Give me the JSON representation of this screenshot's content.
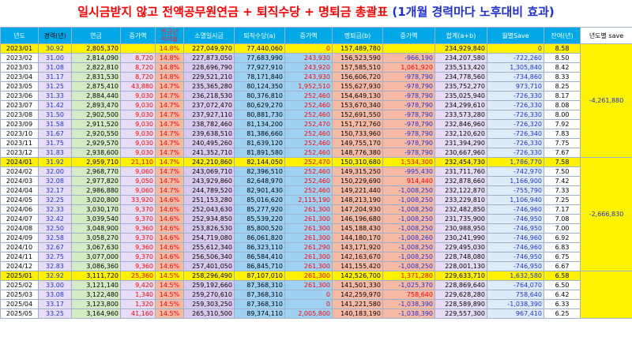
{
  "title": {
    "main": "일시금받지 않고 전액공무원연금 + 퇴직수당 + 명퇴금 총괄표",
    "sub": "(1개월 경력마다 노후대비 효과)"
  },
  "headers": [
    "년도",
    "경력(년)",
    "연금",
    "증가액",
    "연금년\n이자율",
    "소멸일시금",
    "퇴직수당(a)",
    "증가액",
    "명퇴금(b)",
    "증가액",
    "합계(a+b)",
    "월별Save",
    "잔여(년)",
    "년도별 save"
  ],
  "rows": [
    {
      "d": "2023/01",
      "e": "30.92",
      "p": "2,805,370",
      "pi": "",
      "rate": "14.8%",
      "lump": "227,049,970",
      "ret": "77,440,060",
      "ri": "0",
      "hon": "157,489,780",
      "hi": "",
      "sum": "234,929,840",
      "save": "0",
      "rem": "8.58",
      "hl": true
    },
    {
      "d": "2023/02",
      "e": "31.00",
      "p": "2,814,090",
      "pi": "8,720",
      "rate": "14.8%",
      "lump": "227,873,050",
      "ret": "77,683,990",
      "ri": "243,930",
      "hon": "156,523,590",
      "hi": "-966,190",
      "sum": "234,207,580",
      "save": "-722,260",
      "rem": "8.50"
    },
    {
      "d": "2023/03",
      "e": "31.08",
      "p": "2,822,810",
      "pi": "8,720",
      "rate": "14.8%",
      "lump": "228,696,790",
      "ret": "77,927,910",
      "ri": "243,920",
      "hon": "157,585,510",
      "hi": "1,061,920",
      "sum": "235,513,420",
      "save": "1,305,840",
      "rem": "8.42"
    },
    {
      "d": "2023/04",
      "e": "31.17",
      "p": "2,831,530",
      "pi": "8,720",
      "rate": "14.8%",
      "lump": "229,521,210",
      "ret": "78,171,840",
      "ri": "243,930",
      "hon": "156,606,720",
      "hi": "-978,790",
      "sum": "234,778,560",
      "save": "-734,860",
      "rem": "8.33"
    },
    {
      "d": "2023/05",
      "e": "31.25",
      "p": "2,875,410",
      "pi": "43,880",
      "rate": "14.7%",
      "lump": "235,365,280",
      "ret": "80,124,350",
      "ri": "1,952,510",
      "hon": "155,627,930",
      "hi": "-978,790",
      "sum": "235,752,270",
      "save": "973,710",
      "rem": "8.25"
    },
    {
      "d": "2023/06",
      "e": "31.33",
      "p": "2,884,440",
      "pi": "9,030",
      "rate": "14.7%",
      "lump": "236,218,530",
      "ret": "80,376,810",
      "ri": "252,460",
      "hon": "154,649,130",
      "hi": "-978,790",
      "sum": "235,025,940",
      "save": "-726,330",
      "rem": "8.17"
    },
    {
      "d": "2023/07",
      "e": "31.42",
      "p": "2,893,470",
      "pi": "9,030",
      "rate": "14.7%",
      "lump": "237,072,470",
      "ret": "80,629,270",
      "ri": "252,460",
      "hon": "153,670,340",
      "hi": "-978,790",
      "sum": "234,299,610",
      "save": "-726,330",
      "rem": "8.08"
    },
    {
      "d": "2023/08",
      "e": "31.50",
      "p": "2,902,500",
      "pi": "9,030",
      "rate": "14.7%",
      "lump": "237,927,110",
      "ret": "80,881,730",
      "ri": "252,460",
      "hon": "152,691,550",
      "hi": "-978,790",
      "sum": "233,573,280",
      "save": "-726,330",
      "rem": "8.00"
    },
    {
      "d": "2023/09",
      "e": "31.58",
      "p": "2,911,520",
      "pi": "9,030",
      "rate": "14.7%",
      "lump": "238,782,460",
      "ret": "81,134,200",
      "ri": "252,470",
      "hon": "151,712,760",
      "hi": "-978,790",
      "sum": "232,846,960",
      "save": "-726,320",
      "rem": "7.92"
    },
    {
      "d": "2023/10",
      "e": "31.67",
      "p": "2,920,550",
      "pi": "9,030",
      "rate": "14.7%",
      "lump": "239,638,510",
      "ret": "81,386,660",
      "ri": "252,460",
      "hon": "150,733,960",
      "hi": "-978,790",
      "sum": "232,120,620",
      "save": "-726,340",
      "rem": "7.83"
    },
    {
      "d": "2023/11",
      "e": "31.75",
      "p": "2,929,570",
      "pi": "9,030",
      "rate": "14.7%",
      "lump": "240,495,260",
      "ret": "81,639,120",
      "ri": "252,460",
      "hon": "149,755,170",
      "hi": "-978,790",
      "sum": "231,394,290",
      "save": "-726,330",
      "rem": "7.75"
    },
    {
      "d": "2023/12",
      "e": "31.83",
      "p": "2,938,600",
      "pi": "9,030",
      "rate": "14.7%",
      "lump": "241,352,710",
      "ret": "81,891,580",
      "ri": "252,460",
      "hon": "148,776,380",
      "hi": "-978,790",
      "sum": "230,667,960",
      "save": "-726,330",
      "rem": "7.67"
    },
    {
      "d": "2024/01",
      "e": "31.92",
      "p": "2,959,710",
      "pi": "21,110",
      "rate": "14.7%",
      "lump": "242,210,860",
      "ret": "82,144,050",
      "ri": "252,470",
      "hon": "150,310,680",
      "hi": "1,534,300",
      "sum": "232,454,730",
      "save": "1,786,770",
      "rem": "7.58",
      "hl": true
    },
    {
      "d": "2024/02",
      "e": "32.00",
      "p": "2,968,770",
      "pi": "9,060",
      "rate": "14.7%",
      "lump": "243,069,710",
      "ret": "82,396,510",
      "ri": "252,460",
      "hon": "149,315,250",
      "hi": "-995,430",
      "sum": "231,711,760",
      "save": "-742,970",
      "rem": "7.50"
    },
    {
      "d": "2024/03",
      "e": "32.08",
      "p": "2,977,820",
      "pi": "9,050",
      "rate": "14.7%",
      "lump": "243,929,860",
      "ret": "82,648,970",
      "ri": "252,460",
      "hon": "150,229,690",
      "hi": "914,440",
      "sum": "232,878,660",
      "save": "1,166,900",
      "rem": "7.42"
    },
    {
      "d": "2024/04",
      "e": "32.17",
      "p": "2,986,880",
      "pi": "9,060",
      "rate": "14.7%",
      "lump": "244,789,520",
      "ret": "82,901,430",
      "ri": "252,460",
      "hon": "149,221,440",
      "hi": "-1,008,250",
      "sum": "232,122,870",
      "save": "-755,790",
      "rem": "7.33"
    },
    {
      "d": "2024/05",
      "e": "32.25",
      "p": "3,020,800",
      "pi": "33,920",
      "rate": "14.6%",
      "lump": "251,153,280",
      "ret": "85,016,620",
      "ri": "2,115,190",
      "hon": "148,213,190",
      "hi": "-1,008,250",
      "sum": "233,229,810",
      "save": "1,106,940",
      "rem": "7.25"
    },
    {
      "d": "2024/06",
      "e": "32.33",
      "p": "3,030,170",
      "pi": "9,370",
      "rate": "14.6%",
      "lump": "252,043,630",
      "ret": "85,277,920",
      "ri": "261,300",
      "hon": "147,204,930",
      "hi": "-1,008,250",
      "sum": "232,482,850",
      "save": "-746,960",
      "rem": "7.17"
    },
    {
      "d": "2024/07",
      "e": "32.42",
      "p": "3,039,540",
      "pi": "9,370",
      "rate": "14.6%",
      "lump": "252,934,850",
      "ret": "85,539,220",
      "ri": "261,300",
      "hon": "146,196,680",
      "hi": "-1,008,250",
      "sum": "231,735,900",
      "save": "-746,950",
      "rem": "7.08"
    },
    {
      "d": "2024/08",
      "e": "32.50",
      "p": "3,048,900",
      "pi": "9,360",
      "rate": "14.6%",
      "lump": "253,826,530",
      "ret": "85,800,520",
      "ri": "261,300",
      "hon": "145,188,430",
      "hi": "-1,008,250",
      "sum": "230,988,950",
      "save": "-746,950",
      "rem": "7.00"
    },
    {
      "d": "2024/09",
      "e": "32.58",
      "p": "3,058,270",
      "pi": "9,370",
      "rate": "14.6%",
      "lump": "254,719,080",
      "ret": "86,061,820",
      "ri": "261,300",
      "hon": "144,180,170",
      "hi": "-1,008,260",
      "sum": "230,241,990",
      "save": "-746,960",
      "rem": "6.92"
    },
    {
      "d": "2024/10",
      "e": "32.67",
      "p": "3,067,630",
      "pi": "9,360",
      "rate": "14.6%",
      "lump": "255,612,340",
      "ret": "86,323,110",
      "ri": "261,290",
      "hon": "143,171,920",
      "hi": "-1,008,250",
      "sum": "229,495,030",
      "save": "-746,960",
      "rem": "6.83"
    },
    {
      "d": "2024/11",
      "e": "32.75",
      "p": "3,077,000",
      "pi": "9,370",
      "rate": "14.6%",
      "lump": "256,506,340",
      "ret": "86,584,410",
      "ri": "261,300",
      "hon": "142,163,670",
      "hi": "-1,008,250",
      "sum": "228,748,080",
      "save": "-746,950",
      "rem": "6.75"
    },
    {
      "d": "2024/12",
      "e": "32.83",
      "p": "3,086,360",
      "pi": "9,360",
      "rate": "14.6%",
      "lump": "257,401,050",
      "ret": "86,845,710",
      "ri": "261,300",
      "hon": "141,155,420",
      "hi": "-1,008,250",
      "sum": "228,001,130",
      "save": "-746,950",
      "rem": "6.67"
    },
    {
      "d": "2025/01",
      "e": "32.92",
      "p": "3,111,720",
      "pi": "25,360",
      "rate": "14.5%",
      "lump": "258,296,490",
      "ret": "87,107,010",
      "ri": "261,300",
      "hon": "142,526,700",
      "hi": "1,371,280",
      "sum": "229,633,710",
      "save": "1,632,580",
      "rem": "6.58",
      "hl": true
    },
    {
      "d": "2025/02",
      "e": "33.00",
      "p": "3,121,140",
      "pi": "9,420",
      "rate": "14.5%",
      "lump": "259,192,660",
      "ret": "87,368,310",
      "ri": "261,300",
      "hon": "141,501,330",
      "hi": "-1,025,370",
      "sum": "228,869,640",
      "save": "-764,070",
      "rem": "6.50"
    },
    {
      "d": "2025/03",
      "e": "33.08",
      "p": "3,122,480",
      "pi": "1,340",
      "rate": "14.5%",
      "lump": "259,270,610",
      "ret": "87,368,310",
      "ri": "0",
      "hon": "142,259,970",
      "hi": "758,640",
      "sum": "229,628,280",
      "save": "758,640",
      "rem": "6.42"
    },
    {
      "d": "2025/04",
      "e": "33.17",
      "p": "3,123,800",
      "pi": "1,320",
      "rate": "14.5%",
      "lump": "259,303,250",
      "ret": "87,368,310",
      "ri": "0",
      "hon": "141,221,580",
      "hi": "-1,038,390",
      "sum": "228,589,890",
      "save": "-1,038,390",
      "rem": "6.33"
    },
    {
      "d": "2025/05",
      "e": "33.25",
      "p": "3,164,960",
      "pi": "41,160",
      "rate": "14.5%",
      "lump": "265,310,500",
      "ret": "89,374,110",
      "ri": "2,005,800",
      "hon": "140,183,190",
      "hi": "-1,038,390",
      "sum": "229,557,300",
      "save": "967,410",
      "rem": "6.25"
    }
  ],
  "yearly_save": [
    "-4,261,880",
    "-2,666,830"
  ]
}
